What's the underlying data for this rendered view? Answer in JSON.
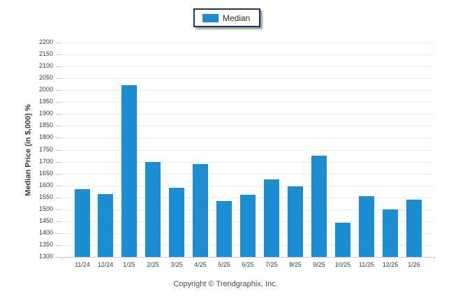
{
  "legend": {
    "label": "Median"
  },
  "footer": {
    "text": "Copyright © Trendgraphix, Inc."
  },
  "colors": {
    "bar": "#1c8dd1",
    "legend_border": "#17375e",
    "gridline": "#ececec",
    "axis_line": "#c9c9c9",
    "tick_text": "#3b3b3b"
  },
  "chart_data": {
    "type": "bar",
    "title": "",
    "xlabel": "",
    "ylabel": "Median Price (in $,000) %",
    "categories": [
      "11/24",
      "12/24",
      "1/25",
      "2/25",
      "3/25",
      "4/25",
      "5/25",
      "6/25",
      "7/25",
      "8/25",
      "9/25",
      "10/25",
      "11/25",
      "12/25",
      "1/26"
    ],
    "series": [
      {
        "name": "Median",
        "values": [
          1585,
          1565,
          2020,
          1700,
          1590,
          1690,
          1535,
          1560,
          1625,
          1595,
          1725,
          1445,
          1555,
          1500,
          1540
        ]
      }
    ],
    "ylim": [
      1300,
      2200
    ],
    "ytick_step": 50,
    "grid": true,
    "legend_position": "top-center",
    "bar_color": "#1c8dd1"
  }
}
